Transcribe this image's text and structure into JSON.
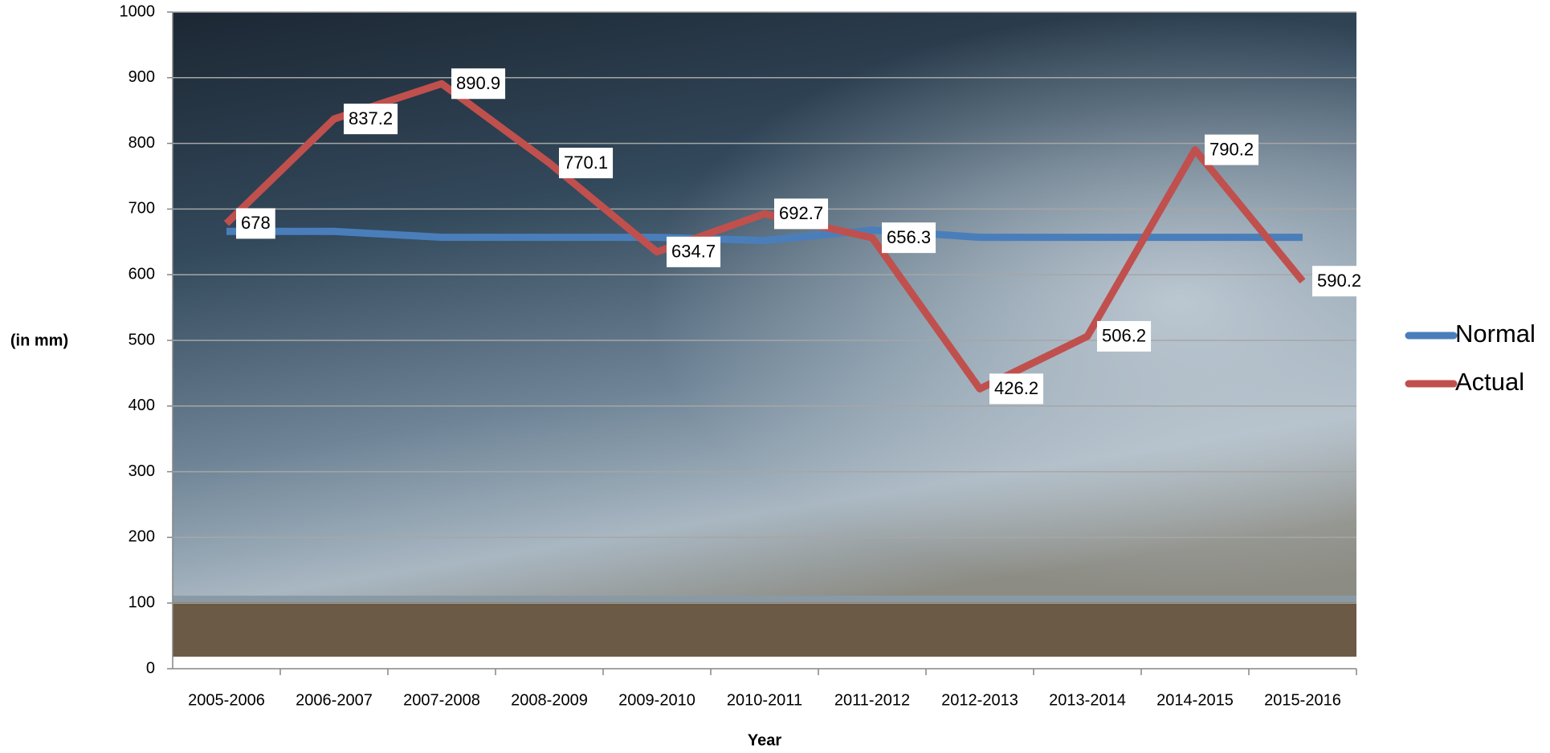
{
  "chart_data": {
    "type": "line",
    "x_label": "Year",
    "y_label": "(in mm)",
    "categories": [
      "2005-2006",
      "2006-2007",
      "2007-2008",
      "2008-2009",
      "2009-2010",
      "2010-2011",
      "2011-2012",
      "2012-2013",
      "2013-2014",
      "2014-2015",
      "2015-2016"
    ],
    "series": [
      {
        "name": "Normal",
        "color": "#4a7ebb",
        "values": [
          666,
          666,
          657,
          657,
          657,
          652,
          668,
          657,
          657,
          657,
          657
        ]
      },
      {
        "name": "Actual",
        "color": "#c0504d",
        "values": [
          678,
          837.2,
          890.9,
          770.1,
          634.7,
          692.7,
          656.3,
          426.2,
          506.2,
          790.2,
          590.2
        ]
      }
    ],
    "ylim": [
      0,
      1000
    ],
    "yticks": [
      0,
      100,
      200,
      300,
      400,
      500,
      600,
      700,
      800,
      900,
      1000
    ],
    "grid": true,
    "legend": "right"
  }
}
